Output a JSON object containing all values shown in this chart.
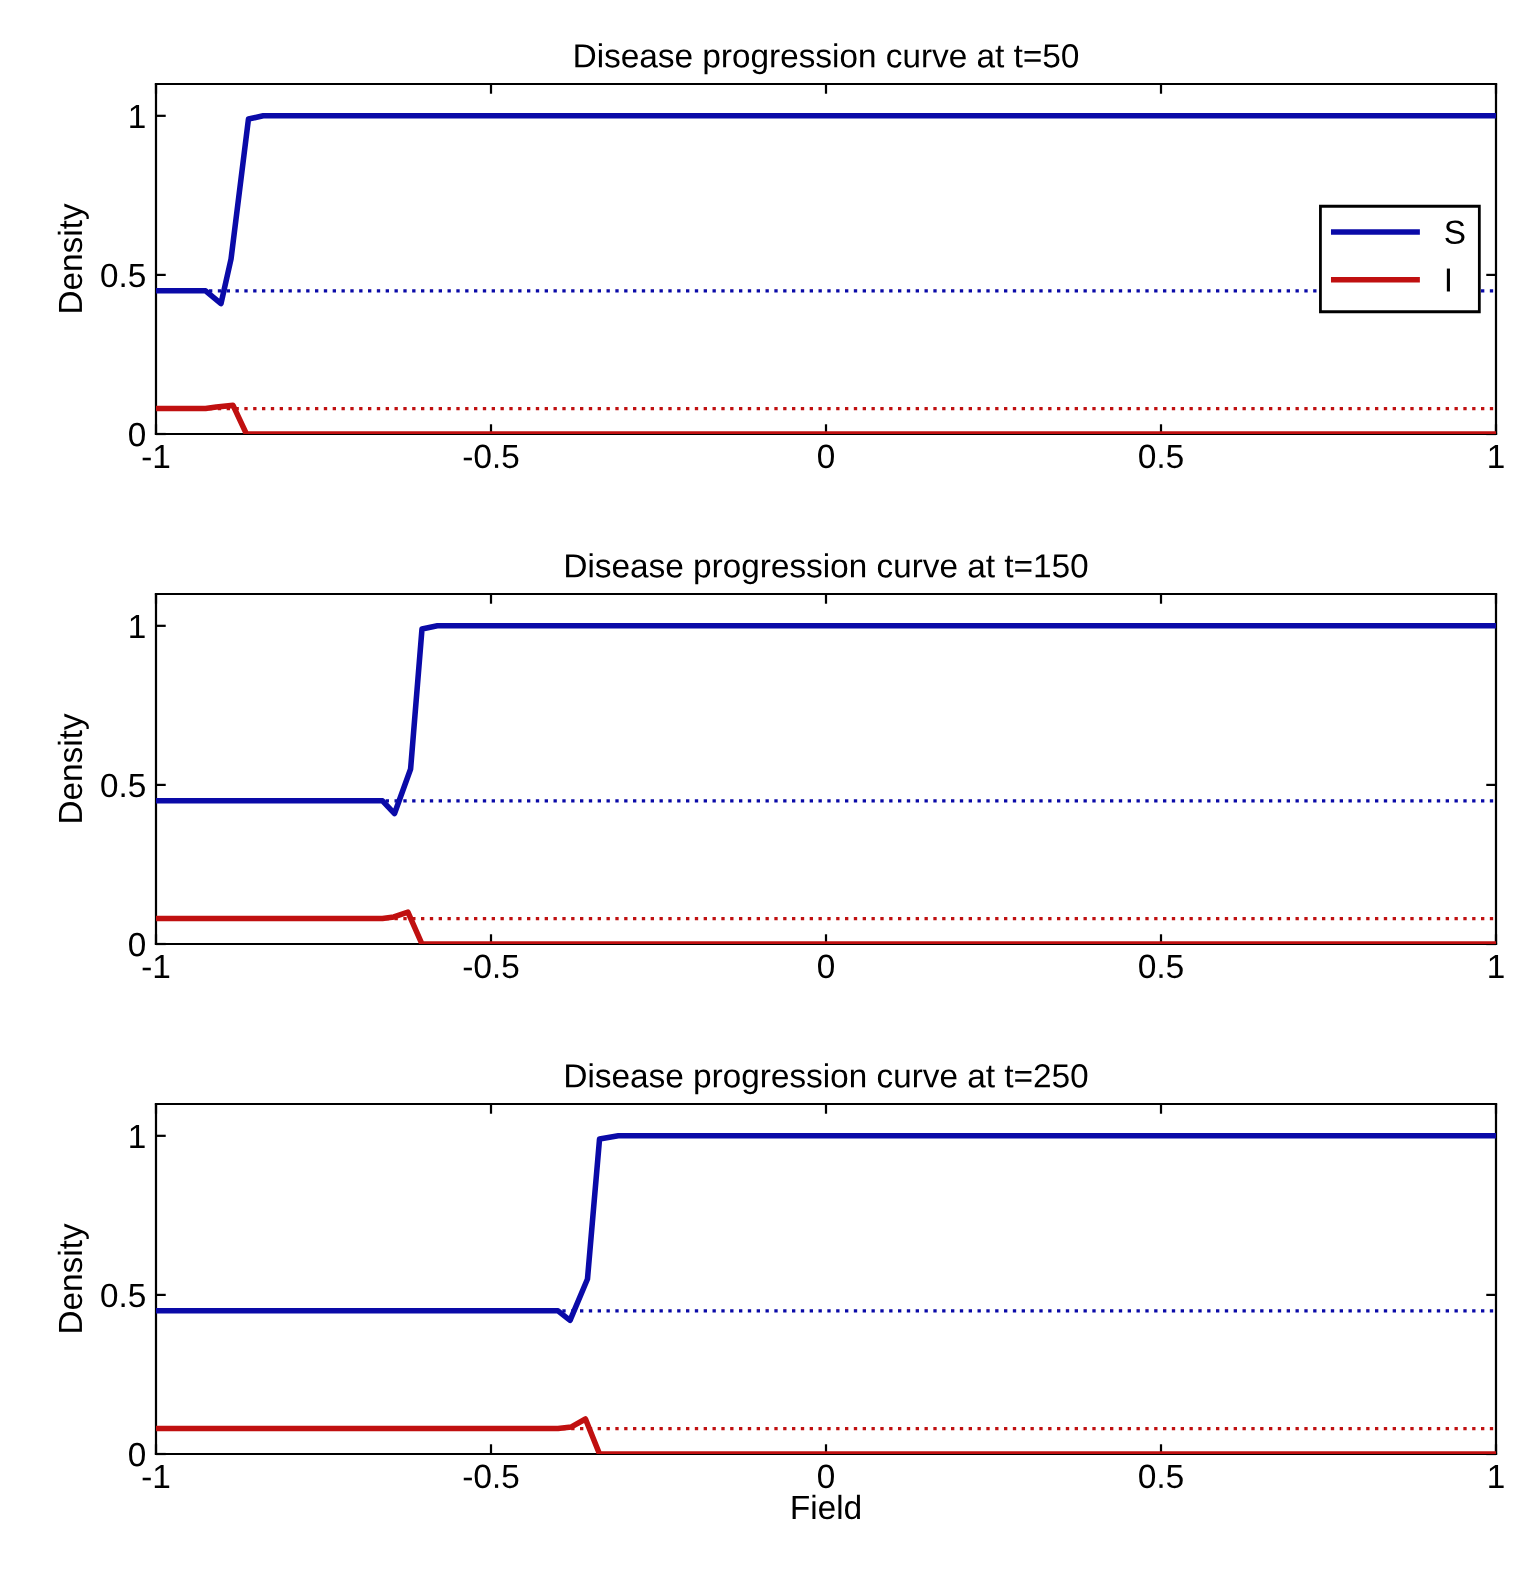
{
  "chart_data": [
    {
      "type": "line",
      "title": "Disease progression curve at t=50",
      "ylabel": "Density",
      "xlim": [
        -1,
        1
      ],
      "ylim": [
        0,
        1.1
      ],
      "xticks": [
        -1,
        -0.5,
        0,
        0.5,
        1
      ],
      "yticks": [
        0,
        0.5,
        1
      ],
      "grid": false,
      "legend": "right",
      "line_style": "solid",
      "marker": "none",
      "series": [
        {
          "name": "S",
          "color": "#0a0aa8",
          "x": [
            -1,
            -0.926,
            -0.903,
            -0.888,
            -0.862,
            -0.84,
            1
          ],
          "values": [
            0.45,
            0.45,
            0.41,
            0.55,
            0.99,
            1,
            1
          ]
        },
        {
          "name": "I",
          "color": "#c01010",
          "x": [
            -1,
            -0.926,
            -0.91,
            -0.885,
            -0.865,
            1
          ],
          "values": [
            0.08,
            0.08,
            0.085,
            0.09,
            0,
            0
          ]
        }
      ],
      "ref_lines": [
        {
          "axis": "y",
          "value": 0.45,
          "label": null,
          "color": "#0a0aa8",
          "line_style": "dotted"
        },
        {
          "axis": "y",
          "value": 0.08,
          "label": null,
          "color": "#c01010",
          "line_style": "dotted"
        }
      ]
    },
    {
      "type": "line",
      "title": "Disease progression curve at t=150",
      "ylabel": "Density",
      "xlim": [
        -1,
        1
      ],
      "ylim": [
        0,
        1.1
      ],
      "xticks": [
        -1,
        -0.5,
        0,
        0.5,
        1
      ],
      "yticks": [
        0,
        0.5,
        1
      ],
      "grid": false,
      "legend": false,
      "line_style": "solid",
      "marker": "none",
      "series": [
        {
          "color": "#0a0aa8",
          "x": [
            -1,
            -0.662,
            -0.644,
            -0.62,
            -0.603,
            -0.58,
            1
          ],
          "values": [
            0.45,
            0.45,
            0.41,
            0.55,
            0.99,
            1,
            1
          ]
        },
        {
          "color": "#c01010",
          "x": [
            -1,
            -0.662,
            -0.645,
            -0.624,
            -0.603,
            1
          ],
          "values": [
            0.08,
            0.08,
            0.085,
            0.1,
            0,
            0
          ]
        }
      ],
      "ref_lines": [
        {
          "axis": "y",
          "value": 0.45,
          "label": null,
          "color": "#0a0aa8",
          "line_style": "dotted"
        },
        {
          "axis": "y",
          "value": 0.08,
          "label": null,
          "color": "#c01010",
          "line_style": "dotted"
        }
      ]
    },
    {
      "type": "line",
      "title": "Disease progression curve at t=250",
      "ylabel": "Density",
      "xlabel": "Field",
      "xlim": [
        -1,
        1
      ],
      "ylim": [
        0,
        1.1
      ],
      "xticks": [
        -1,
        -0.5,
        0,
        0.5,
        1
      ],
      "yticks": [
        0,
        0.5,
        1
      ],
      "grid": false,
      "legend": false,
      "line_style": "solid",
      "marker": "none",
      "series": [
        {
          "color": "#0a0aa8",
          "x": [
            -1,
            -0.4,
            -0.382,
            -0.356,
            -0.338,
            -0.31,
            1
          ],
          "values": [
            0.45,
            0.45,
            0.42,
            0.55,
            0.99,
            1,
            1
          ]
        },
        {
          "color": "#c01010",
          "x": [
            -1,
            -0.4,
            -0.38,
            -0.359,
            -0.338,
            1
          ],
          "values": [
            0.08,
            0.08,
            0.085,
            0.11,
            0,
            0
          ]
        }
      ],
      "ref_lines": [
        {
          "axis": "y",
          "value": 0.45,
          "label": null,
          "color": "#0a0aa8",
          "line_style": "dotted"
        },
        {
          "axis": "y",
          "value": 0.08,
          "label": null,
          "color": "#c01010",
          "line_style": "dotted"
        }
      ]
    }
  ]
}
